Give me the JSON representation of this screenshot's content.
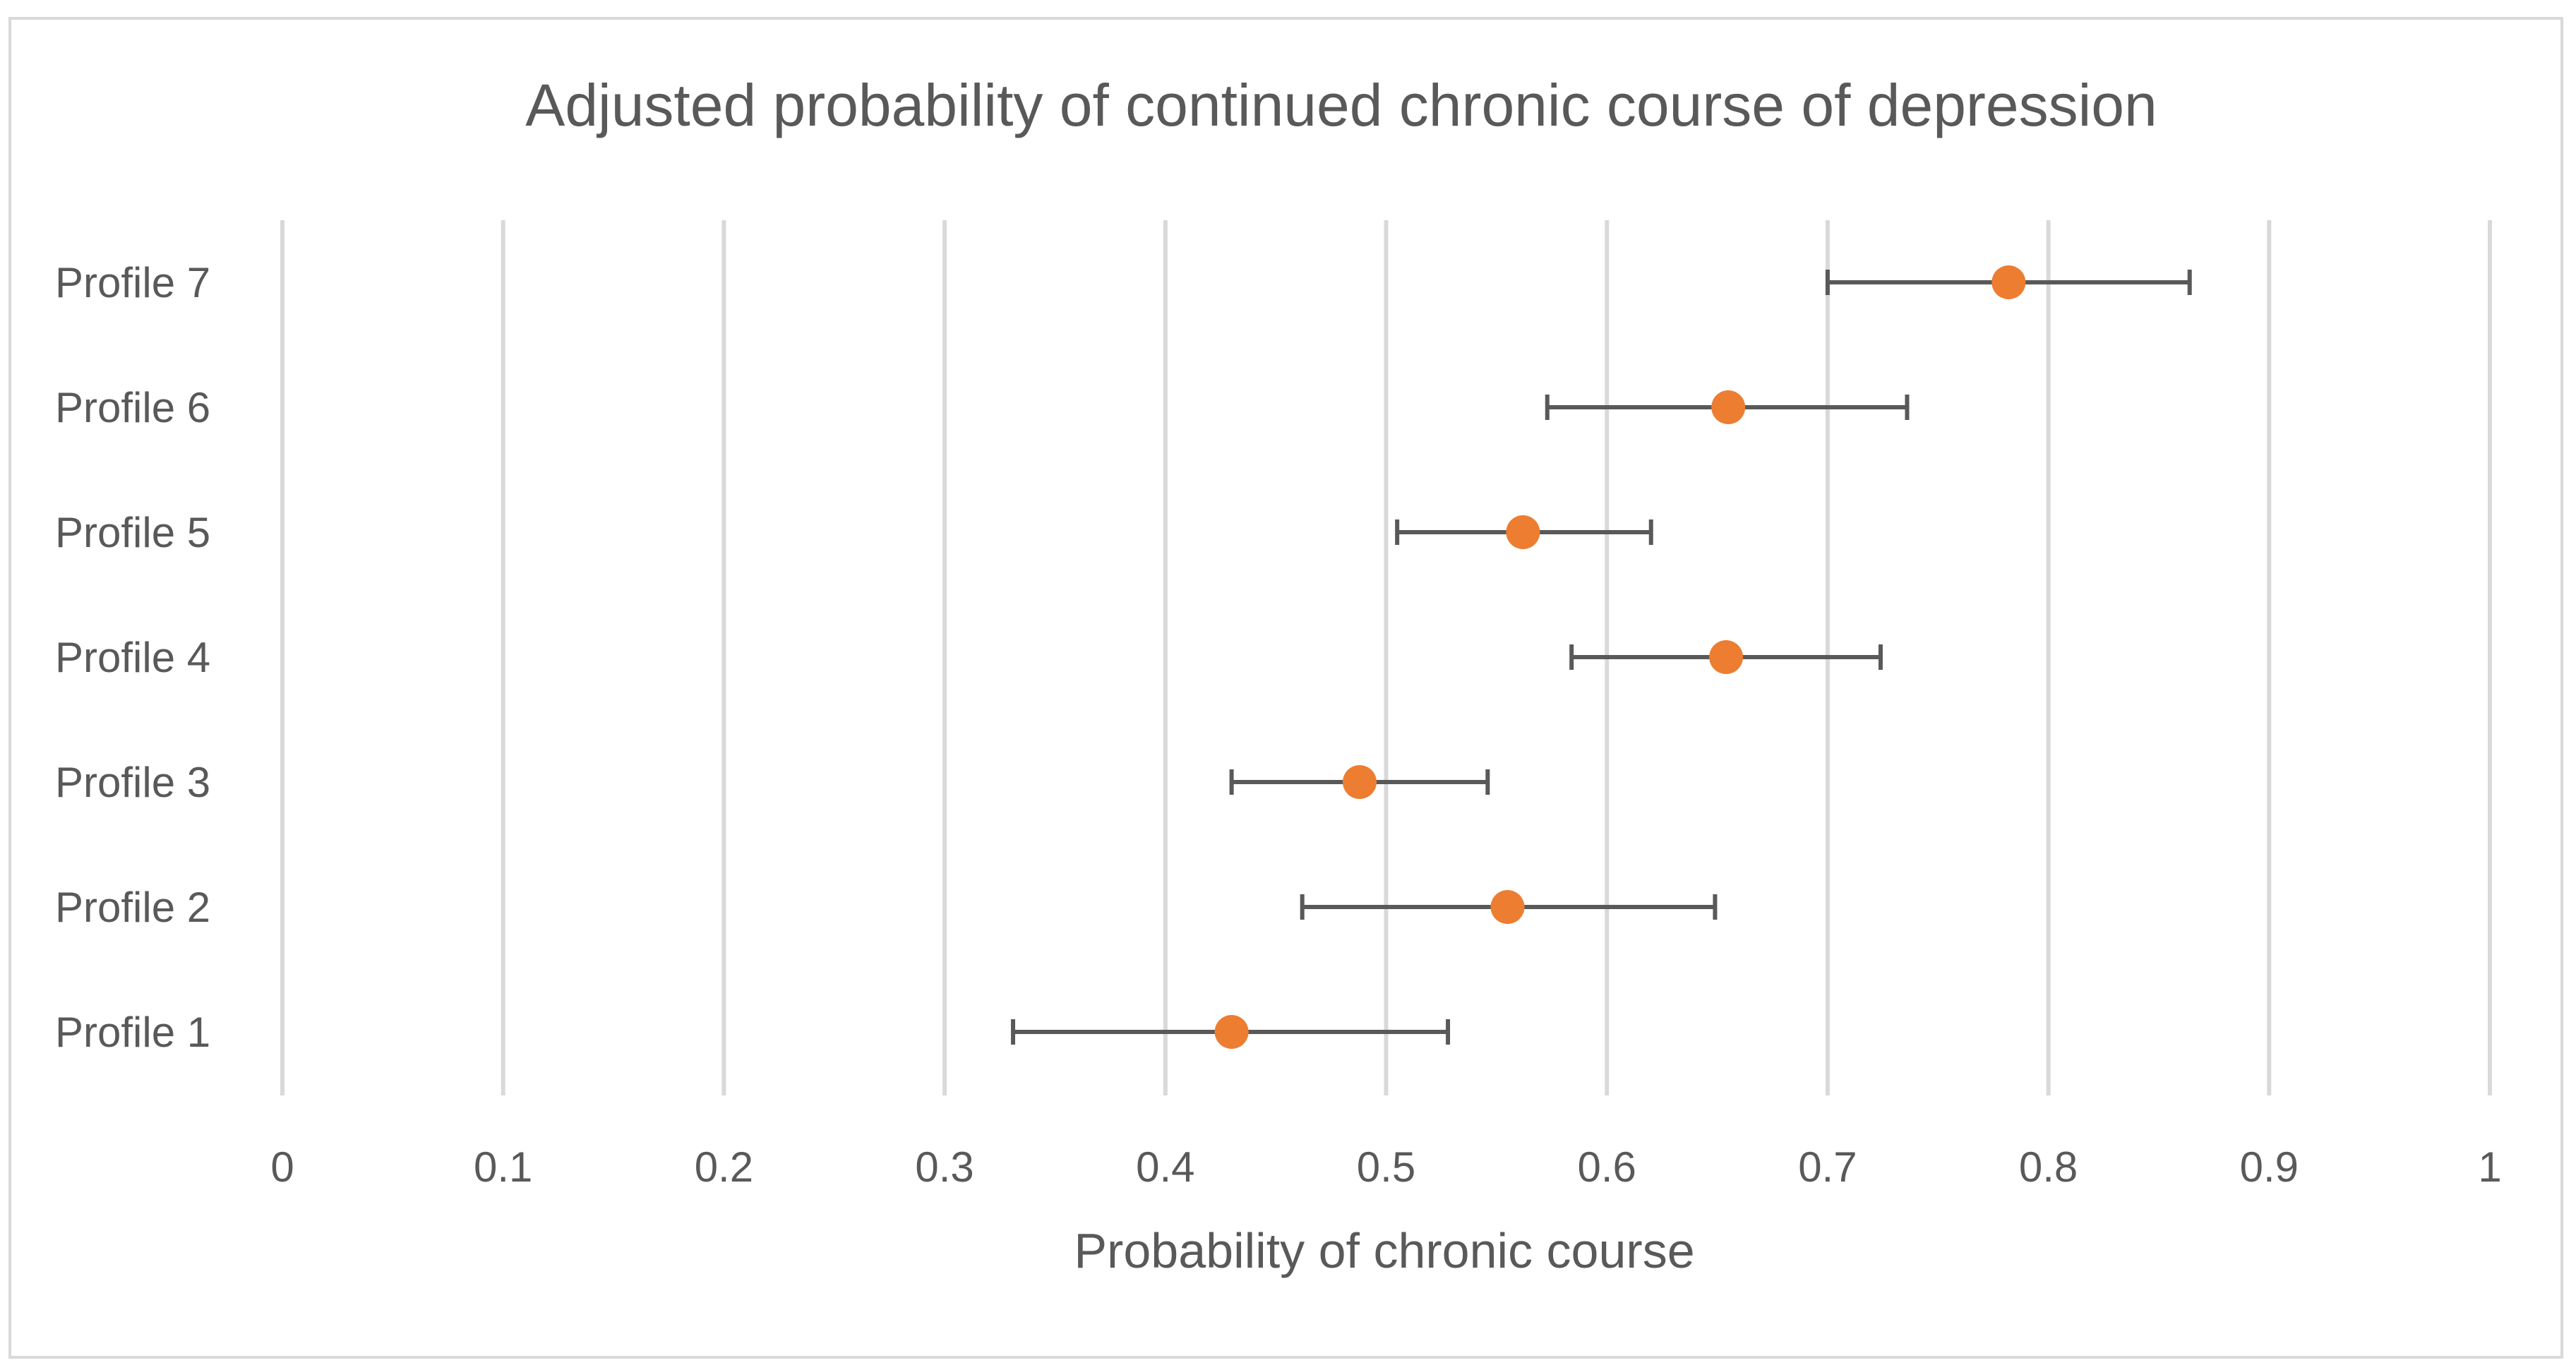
{
  "chart_data": {
    "type": "scatter",
    "orientation": "horizontal",
    "title": "Adjusted probability of continued chronic course of depression",
    "xlabel": "Probability of chronic course",
    "ylabel": "",
    "xlim": [
      0,
      1
    ],
    "x_ticks": [
      0,
      0.1,
      0.2,
      0.3,
      0.4,
      0.5,
      0.6,
      0.7,
      0.8,
      0.9,
      1
    ],
    "x_tick_labels": [
      "0",
      "0.1",
      "0.2",
      "0.3",
      "0.4",
      "0.5",
      "0.6",
      "0.7",
      "0.8",
      "0.9",
      "1"
    ],
    "grid": "vertical",
    "categories": [
      "Profile 1",
      "Profile 2",
      "Profile 3",
      "Profile 4",
      "Profile 5",
      "Profile 6",
      "Profile 7"
    ],
    "series": [
      {
        "name": "Adjusted probability",
        "values": [
          0.43,
          0.555,
          0.488,
          0.654,
          0.562,
          0.655,
          0.782
        ],
        "ci_lower": [
          0.331,
          0.462,
          0.43,
          0.584,
          0.505,
          0.573,
          0.7
        ],
        "ci_upper": [
          0.528,
          0.649,
          0.546,
          0.724,
          0.62,
          0.736,
          0.864
        ],
        "marker_color": "#ED7D31",
        "errorbar_color": "#595959"
      }
    ],
    "colors": {
      "text": "#595959",
      "gridline": "#D9D9D9",
      "border": "#D9D9D9"
    }
  }
}
